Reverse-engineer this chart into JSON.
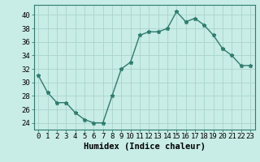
{
  "x": [
    0,
    1,
    2,
    3,
    4,
    5,
    6,
    7,
    8,
    9,
    10,
    11,
    12,
    13,
    14,
    15,
    16,
    17,
    18,
    19,
    20,
    21,
    22,
    23
  ],
  "y": [
    31,
    28.5,
    27,
    27,
    25.5,
    24.5,
    24,
    24,
    28,
    32,
    33,
    37,
    37.5,
    37.5,
    38,
    40.5,
    39,
    39.5,
    38.5,
    37,
    35,
    34,
    32.5,
    32.5
  ],
  "line_color": "#2e7d6e",
  "marker": "*",
  "marker_size": 3.5,
  "bg_color": "#c8ece6",
  "grid_color_major": "#aad4cc",
  "grid_color_minor": "#bbddd8",
  "xlabel": "Humidex (Indice chaleur)",
  "ylim": [
    23,
    41.5
  ],
  "xlim": [
    -0.5,
    23.5
  ],
  "yticks": [
    24,
    26,
    28,
    30,
    32,
    34,
    36,
    38,
    40
  ],
  "xtick_labels": [
    "0",
    "1",
    "2",
    "3",
    "4",
    "5",
    "6",
    "7",
    "8",
    "9",
    "10",
    "11",
    "12",
    "13",
    "14",
    "15",
    "16",
    "17",
    "18",
    "19",
    "20",
    "21",
    "22",
    "23"
  ],
  "xlabel_fontsize": 7.5,
  "tick_fontsize": 6.5,
  "line_width": 1.0
}
